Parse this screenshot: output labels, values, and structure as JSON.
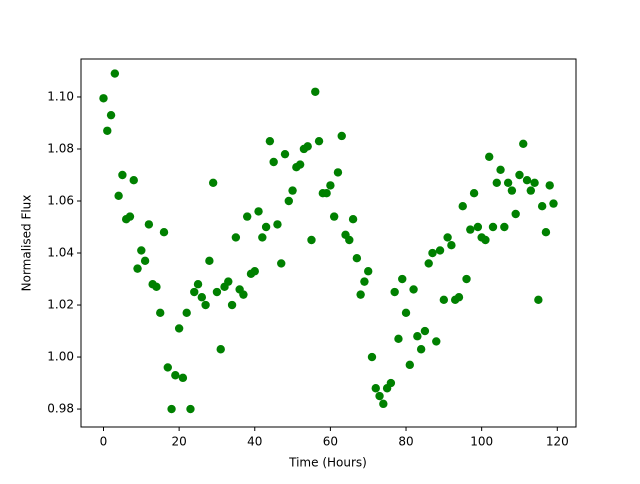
{
  "chart_data": {
    "type": "scatter",
    "xlabel": "Time (Hours)",
    "ylabel": "Normalised Flux",
    "color": "#008000",
    "x": [
      0,
      1,
      2,
      3,
      4,
      5,
      6,
      7,
      8,
      9,
      10,
      11,
      12,
      13,
      14,
      15,
      16,
      17,
      18,
      19,
      20,
      21,
      22,
      23,
      24,
      25,
      26,
      27,
      28,
      29,
      30,
      31,
      32,
      33,
      34,
      35,
      36,
      37,
      38,
      39,
      40,
      41,
      42,
      43,
      44,
      45,
      46,
      47,
      48,
      49,
      50,
      51,
      52,
      53,
      54,
      55,
      56,
      57,
      58,
      59,
      60,
      61,
      62,
      63,
      64,
      65,
      66,
      67,
      68,
      69,
      70,
      71,
      72,
      73,
      74,
      75,
      76,
      77,
      78,
      79,
      80,
      81,
      82,
      83,
      84,
      85,
      86,
      87,
      88,
      89,
      90,
      91,
      92,
      93,
      94,
      95,
      96,
      97,
      98,
      99,
      100,
      101,
      102,
      103,
      104,
      105,
      106,
      107,
      108,
      109,
      110,
      111,
      112,
      113,
      114,
      115,
      116,
      117,
      118,
      119
    ],
    "values": [
      1.0995,
      1.087,
      1.093,
      1.109,
      1.062,
      1.07,
      1.053,
      1.054,
      1.068,
      1.034,
      1.041,
      1.037,
      1.051,
      1.028,
      1.027,
      1.017,
      1.048,
      0.996,
      0.98,
      0.993,
      1.011,
      0.992,
      1.017,
      0.98,
      1.025,
      1.028,
      1.023,
      1.02,
      1.037,
      1.067,
      1.025,
      1.003,
      1.027,
      1.029,
      1.02,
      1.046,
      1.026,
      1.024,
      1.054,
      1.032,
      1.033,
      1.056,
      1.046,
      1.05,
      1.083,
      1.075,
      1.051,
      1.036,
      1.078,
      1.06,
      1.064,
      1.073,
      1.074,
      1.08,
      1.081,
      1.045,
      1.102,
      1.083,
      1.063,
      1.063,
      1.066,
      1.054,
      1.071,
      1.085,
      1.047,
      1.045,
      1.053,
      1.038,
      1.024,
      1.029,
      1.033,
      1.0,
      0.988,
      0.985,
      0.982,
      0.988,
      0.99,
      1.025,
      1.007,
      1.03,
      1.017,
      0.997,
      1.026,
      1.008,
      1.003,
      1.01,
      1.036,
      1.04,
      1.006,
      1.041,
      1.022,
      1.046,
      1.043,
      1.022,
      1.023,
      1.058,
      1.03,
      1.049,
      1.063,
      1.05,
      1.046,
      1.045,
      1.077,
      1.05,
      1.067,
      1.072,
      1.05,
      1.067,
      1.064,
      1.055,
      1.07,
      1.082,
      1.068,
      1.064,
      1.067,
      1.022,
      1.058,
      1.048,
      1.066,
      1.059
    ],
    "xlim": [
      -5.95,
      124.95
    ],
    "ylim": [
      0.9731,
      1.1146
    ],
    "xticks": [
      0,
      20,
      40,
      60,
      80,
      100,
      120
    ],
    "yticks": [
      0.98,
      {
        "value": 1.0,
        "label": "1.00"
      },
      1.02,
      1.04,
      1.06,
      1.08,
      {
        "value": 1.1,
        "label": "1.10"
      }
    ]
  }
}
